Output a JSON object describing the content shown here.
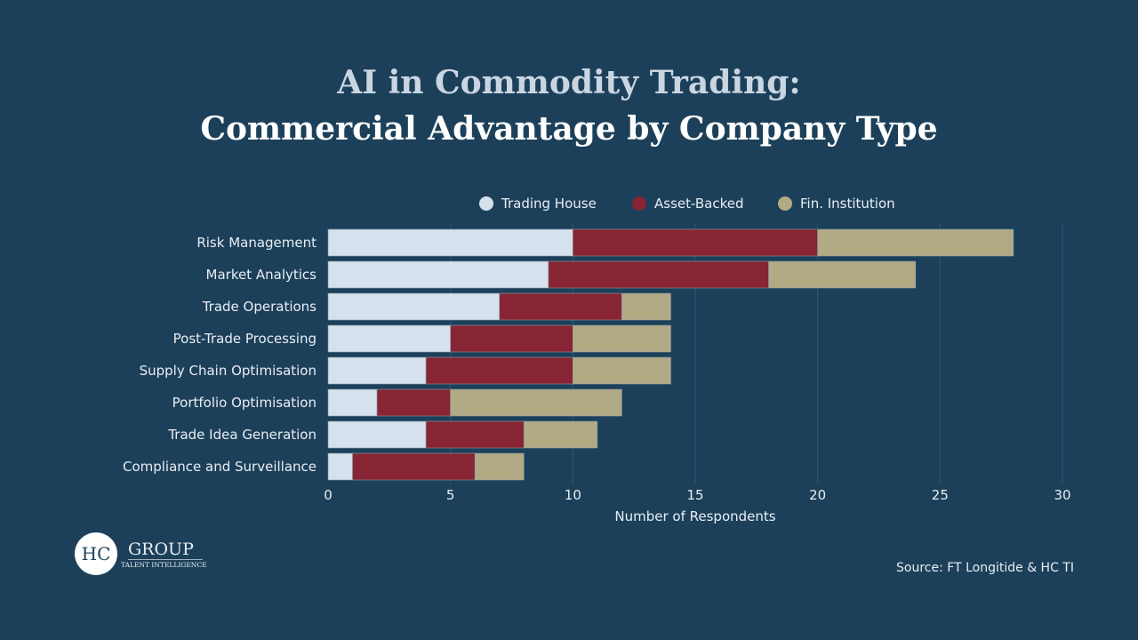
{
  "chart_data": {
    "type": "bar",
    "orientation": "horizontal",
    "stacked": true,
    "title": "AI in Commodity Trading:",
    "subtitle": "Commercial Advantage by Company Type",
    "xlabel": "Number of Respondents",
    "ylabel": "",
    "xlim": [
      0,
      30
    ],
    "xticks": [
      "0",
      "5",
      "10",
      "15",
      "20",
      "25",
      "30"
    ],
    "grid": true,
    "legend_position": "top",
    "categories": [
      "Risk Management",
      "Market Analytics",
      "Trade Operations",
      "Post-Trade Processing",
      "Supply Chain Optimisation",
      "Portfolio Optimisation",
      "Trade Idea Generation",
      "Compliance and Surveillance"
    ],
    "series": [
      {
        "name": "Trading House",
        "color": "#d5e1ec",
        "values": [
          10,
          9,
          7,
          5,
          4,
          2,
          4,
          1
        ]
      },
      {
        "name": "Asset-Backed",
        "color": "#872534",
        "values": [
          10,
          9,
          5,
          5,
          6,
          3,
          4,
          5
        ]
      },
      {
        "name": "Fin. Institution",
        "color": "#b2aa85",
        "values": [
          8,
          6,
          2,
          4,
          4,
          7,
          3,
          2
        ]
      }
    ]
  },
  "source": "Source: FT Longitide & HC TI",
  "logo": {
    "mark": "HC",
    "name": "GROUP",
    "tagline": "TALENT INTELLIGENCE"
  }
}
